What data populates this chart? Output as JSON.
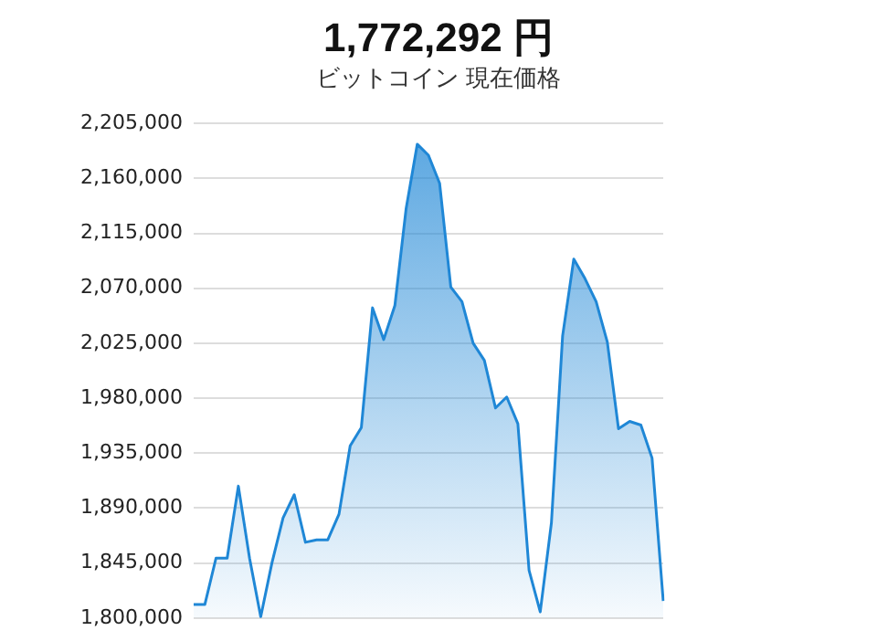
{
  "chart_data": {
    "type": "area",
    "title": "1,772,292 円",
    "subtitle": "ビットコイン 現在価格",
    "categories": [
      null,
      null,
      null,
      null,
      null,
      null,
      null,
      null,
      null,
      null,
      null,
      null,
      null,
      null,
      null,
      null,
      null,
      null,
      null,
      null,
      null,
      null,
      null,
      null,
      null,
      null,
      null,
      null,
      null,
      null,
      null,
      null,
      null,
      null,
      null,
      null,
      null,
      null,
      null,
      null,
      null,
      null,
      null
    ],
    "series": [
      {
        "color": "#1f87d6",
        "values": [
          1811000,
          1811000,
          1849000,
          1849000,
          1908000,
          1849000,
          1801000,
          1845000,
          1882000,
          1901000,
          1862000,
          1864000,
          1864000,
          1885000,
          1941000,
          1956000,
          2054000,
          2028000,
          2056000,
          2135000,
          2188000,
          2179000,
          2156000,
          2071000,
          2059000,
          2025000,
          2011000,
          1972000,
          1981000,
          1959000,
          1839000,
          1805000,
          1878000,
          2031000,
          2094000,
          2078000,
          2059000,
          2026000,
          1955000,
          1961000,
          1958000,
          1931000,
          1814000
        ]
      }
    ],
    "ylim": [
      1800000,
      2205000
    ],
    "yticks": [
      {
        "value": 1800000,
        "label": "1,800,000"
      },
      {
        "value": 1845000,
        "label": "1,845,000"
      },
      {
        "value": 1890000,
        "label": "1,890,000"
      },
      {
        "value": 1935000,
        "label": "1,935,000"
      },
      {
        "value": 1980000,
        "label": "1,980,000"
      },
      {
        "value": 2025000,
        "label": "2,025,000"
      },
      {
        "value": 2070000,
        "label": "2,070,000"
      },
      {
        "value": 2115000,
        "label": "2,115,000"
      },
      {
        "value": 2160000,
        "label": "2,160,000"
      },
      {
        "value": 2205000,
        "label": "2,205,000"
      }
    ],
    "grid": "y",
    "tick_labels": "y",
    "legend": false,
    "marker": "none",
    "line_style": "solid"
  }
}
